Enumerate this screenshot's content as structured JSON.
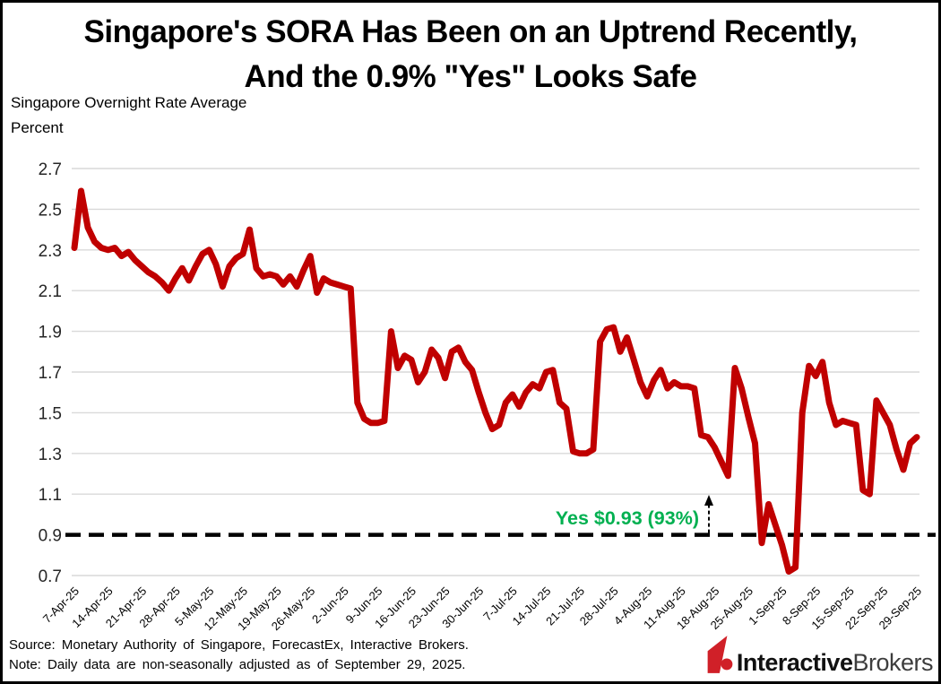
{
  "title": {
    "line1": "Singapore's SORA Has Been on an Uptrend Recently,",
    "line2": "And the 0.9% \"Yes\" Looks Safe"
  },
  "axis_titles": {
    "line1": "Singapore Overnight Rate Average",
    "line2": "Percent"
  },
  "chart_data": {
    "type": "line",
    "title": "Singapore's SORA Has Been on an Uptrend Recently, And the 0.9% \"Yes\" Looks Safe",
    "ylabel": "Percent",
    "series_name": "Singapore Overnight Rate Average (daily)",
    "ylim": [
      0.7,
      2.7
    ],
    "y_ticks": [
      "2.7",
      "2.5",
      "2.3",
      "2.1",
      "1.9",
      "1.7",
      "1.5",
      "1.3",
      "1.1",
      "0.9",
      "0.7"
    ],
    "x_tick_labels": [
      "7-Apr-25",
      "14-Apr-25",
      "21-Apr-25",
      "28-Apr-25",
      "5-May-25",
      "12-May-25",
      "19-May-25",
      "26-May-25",
      "2-Jun-25",
      "9-Jun-25",
      "16-Jun-25",
      "23-Jun-25",
      "30-Jun-25",
      "7-Jul-25",
      "14-Jul-25",
      "21-Jul-25",
      "28-Jul-25",
      "4-Aug-25",
      "11-Aug-25",
      "18-Aug-25",
      "25-Aug-25",
      "1-Sep-25",
      "8-Sep-25",
      "15-Sep-25",
      "22-Sep-25",
      "29-Sep-25"
    ],
    "points_per_tick_interval": 5,
    "values": [
      2.31,
      2.59,
      2.41,
      2.34,
      2.31,
      2.3,
      2.31,
      2.27,
      2.29,
      2.25,
      2.22,
      2.19,
      2.17,
      2.14,
      2.1,
      2.16,
      2.21,
      2.15,
      2.22,
      2.28,
      2.3,
      2.23,
      2.12,
      2.22,
      2.26,
      2.28,
      2.4,
      2.21,
      2.17,
      2.18,
      2.17,
      2.13,
      2.17,
      2.12,
      2.2,
      2.27,
      2.09,
      2.16,
      2.14,
      2.13,
      2.12,
      2.11,
      1.55,
      1.47,
      1.45,
      1.45,
      1.46,
      1.9,
      1.72,
      1.78,
      1.76,
      1.65,
      1.7,
      1.81,
      1.77,
      1.67,
      1.8,
      1.82,
      1.75,
      1.71,
      1.6,
      1.5,
      1.42,
      1.44,
      1.55,
      1.59,
      1.53,
      1.6,
      1.64,
      1.62,
      1.7,
      1.71,
      1.55,
      1.52,
      1.31,
      1.3,
      1.3,
      1.32,
      1.85,
      1.91,
      1.92,
      1.8,
      1.87,
      1.76,
      1.65,
      1.58,
      1.66,
      1.71,
      1.62,
      1.65,
      1.63,
      1.63,
      1.62,
      1.39,
      1.38,
      1.33,
      1.26,
      1.19,
      1.72,
      1.62,
      1.48,
      1.35,
      0.86,
      1.05,
      0.95,
      0.85,
      0.72,
      0.74,
      1.5,
      1.73,
      1.68,
      1.75,
      1.55,
      1.44,
      1.46,
      1.45,
      1.44,
      1.12,
      1.1,
      1.56,
      1.5,
      1.44,
      1.32,
      1.22,
      1.35,
      1.38
    ],
    "line_color": "#C00000",
    "gridline_color": "#D9D9D9",
    "grid": "horizontal",
    "threshold": {
      "value": 0.9,
      "color": "#000000",
      "style": "dashed"
    },
    "annotation": {
      "text": "Yes $0.93 (93%)",
      "color": "#00B050",
      "arrow": "up"
    }
  },
  "footer": {
    "source": "Source: Monetary Authority of Singapore, ForecastEx, Interactive Brokers.",
    "note": "Note: Daily data are non-seasonally adjusted as of September 29, 2025."
  },
  "logo": {
    "brand_bold": "Interactive",
    "brand_regular": "Brokers",
    "mark_color": "#D02028"
  }
}
